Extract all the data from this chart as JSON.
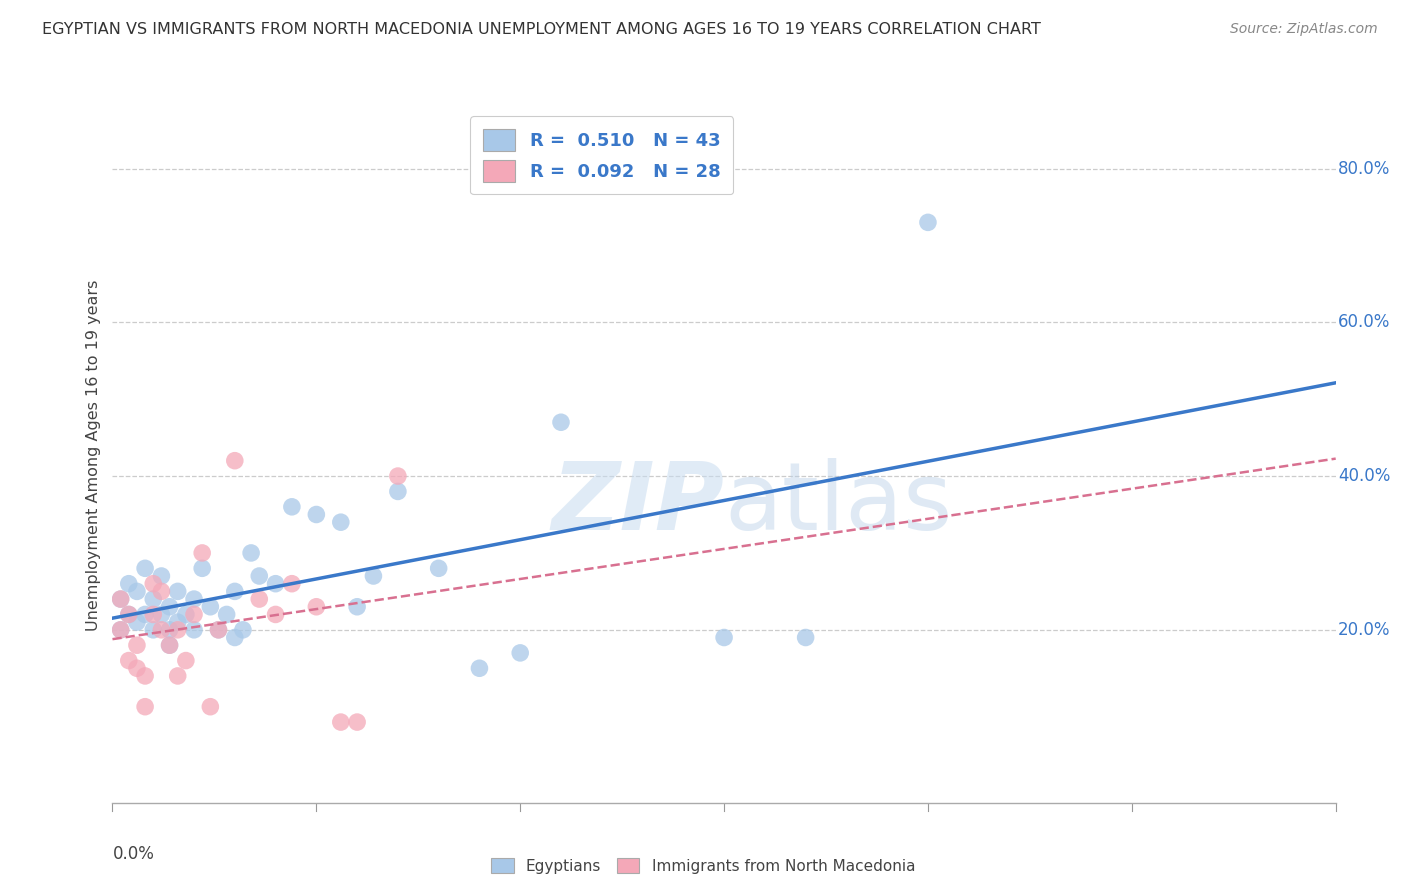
{
  "title": "EGYPTIAN VS IMMIGRANTS FROM NORTH MACEDONIA UNEMPLOYMENT AMONG AGES 16 TO 19 YEARS CORRELATION CHART",
  "source": "Source: ZipAtlas.com",
  "ylabel": "Unemployment Among Ages 16 to 19 years",
  "watermark_zip": "ZIP",
  "watermark_atlas": "atlas",
  "legend_line1": "R =  0.510   N = 43",
  "legend_line2": "R =  0.092   N = 28",
  "color_egyptian": "#A8C8E8",
  "color_macedonian": "#F4A8B8",
  "color_line_egyptian": "#3A78C9",
  "color_line_macedonian": "#D87090",
  "xlim": [
    0.0,
    0.15
  ],
  "ylim": [
    -0.025,
    0.88
  ],
  "yticks": [
    0.0,
    0.2,
    0.4,
    0.6,
    0.8
  ],
  "ytick_labels": [
    "",
    "20.0%",
    "40.0%",
    "60.0%",
    "80.0%"
  ],
  "egyptians_x": [
    0.001,
    0.001,
    0.002,
    0.002,
    0.003,
    0.003,
    0.004,
    0.004,
    0.005,
    0.005,
    0.006,
    0.006,
    0.007,
    0.007,
    0.007,
    0.008,
    0.008,
    0.009,
    0.01,
    0.01,
    0.011,
    0.012,
    0.013,
    0.014,
    0.015,
    0.015,
    0.016,
    0.017,
    0.018,
    0.02,
    0.022,
    0.025,
    0.028,
    0.03,
    0.032,
    0.035,
    0.04,
    0.045,
    0.05,
    0.055,
    0.075,
    0.085,
    0.1
  ],
  "egyptians_y": [
    0.2,
    0.24,
    0.22,
    0.26,
    0.21,
    0.25,
    0.22,
    0.28,
    0.2,
    0.24,
    0.22,
    0.27,
    0.18,
    0.23,
    0.2,
    0.25,
    0.21,
    0.22,
    0.24,
    0.2,
    0.28,
    0.23,
    0.2,
    0.22,
    0.19,
    0.25,
    0.2,
    0.3,
    0.27,
    0.26,
    0.36,
    0.35,
    0.34,
    0.23,
    0.27,
    0.38,
    0.28,
    0.15,
    0.17,
    0.47,
    0.19,
    0.19,
    0.73
  ],
  "macedonians_x": [
    0.001,
    0.001,
    0.002,
    0.002,
    0.003,
    0.003,
    0.004,
    0.004,
    0.005,
    0.005,
    0.006,
    0.006,
    0.007,
    0.008,
    0.008,
    0.009,
    0.01,
    0.011,
    0.012,
    0.013,
    0.015,
    0.018,
    0.02,
    0.022,
    0.025,
    0.028,
    0.03,
    0.035
  ],
  "macedonians_y": [
    0.2,
    0.24,
    0.16,
    0.22,
    0.15,
    0.18,
    0.1,
    0.14,
    0.26,
    0.22,
    0.2,
    0.25,
    0.18,
    0.2,
    0.14,
    0.16,
    0.22,
    0.3,
    0.1,
    0.2,
    0.42,
    0.24,
    0.22,
    0.26,
    0.23,
    0.08,
    0.08,
    0.4
  ]
}
